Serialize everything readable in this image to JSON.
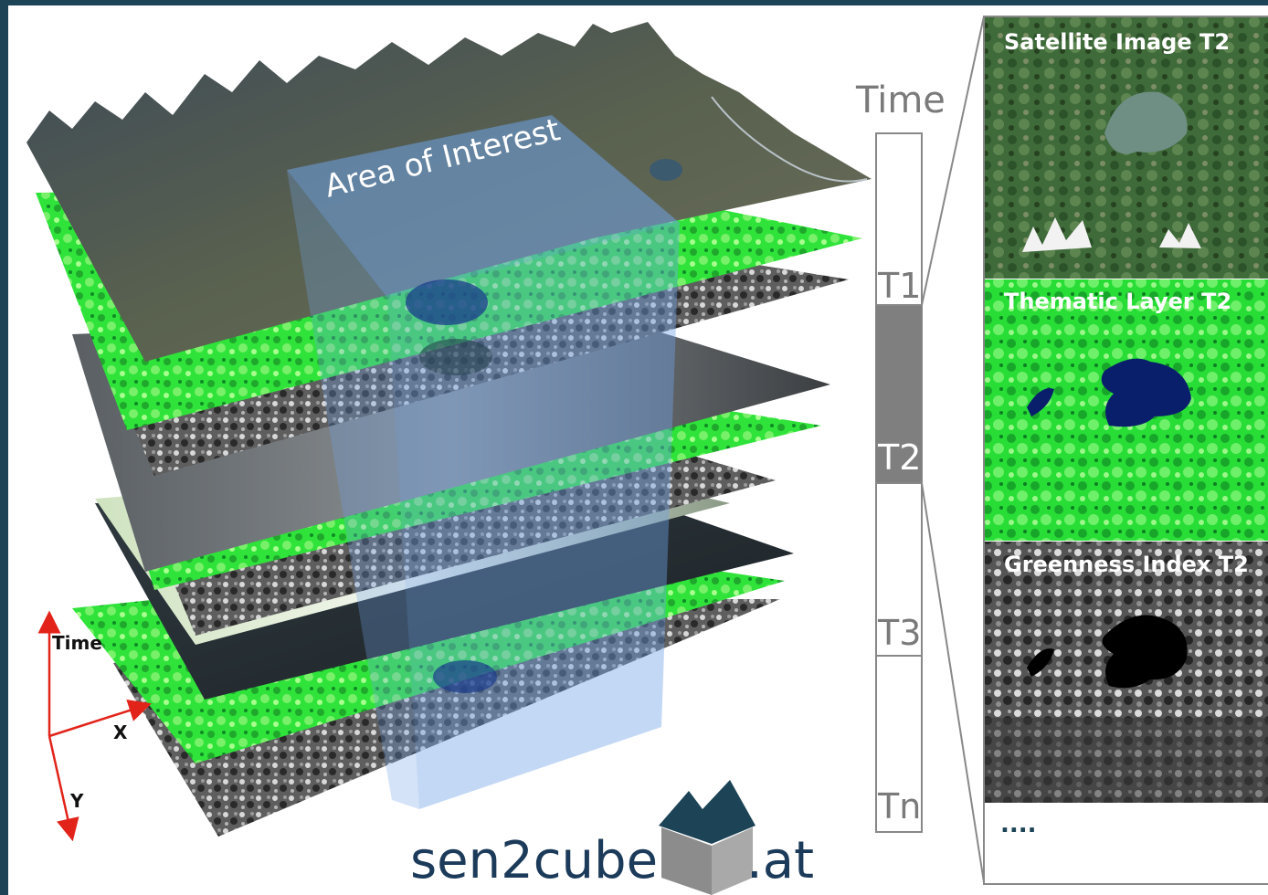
{
  "cube": {
    "aoi_label": "Area of Interest",
    "axes": {
      "time": "Time",
      "x": "X",
      "y": "Y"
    }
  },
  "timeline": {
    "title": "Time",
    "ticks": [
      "T1",
      "T2",
      "T3",
      "Tn"
    ],
    "highlighted": "T2"
  },
  "panels": {
    "satellite": "Satellite Image T2",
    "thematic": "Thematic Layer T2",
    "greenness": "Greenness Index T2",
    "more": "...."
  },
  "logo": {
    "left": "sen2cube",
    "right": ".at"
  },
  "colors": {
    "frame": "#1c4356",
    "aoi": "#6fa3e6",
    "thematic_green": "#2fe33a",
    "water": "#0a1f6b",
    "logo_text": "#1c3b5a",
    "logo_roof": "#1c4356",
    "logo_box": "#8c8c8c",
    "timeline_fill": "#7f7f7f"
  }
}
